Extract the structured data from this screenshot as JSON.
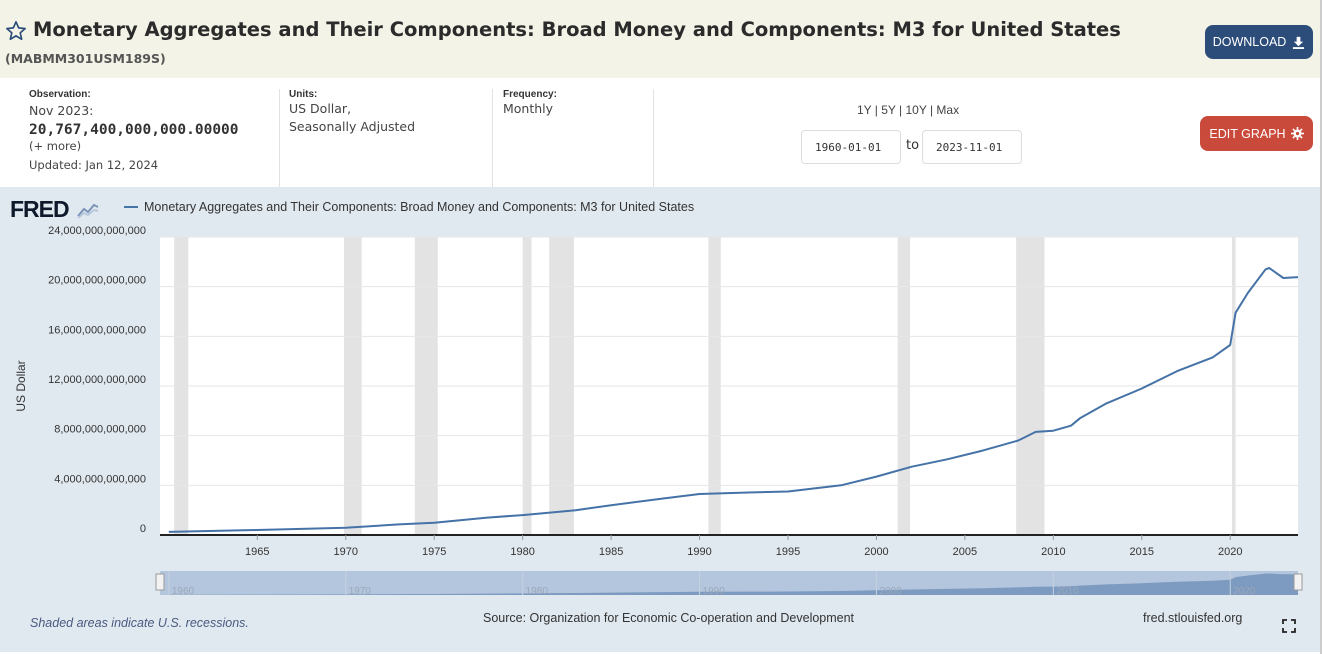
{
  "header": {
    "title": "Monetary Aggregates and Their Components: Broad Money and Components: M3 for United States",
    "series_id": "(MABMM301USM189S)",
    "download_label": "DOWNLOAD"
  },
  "meta": {
    "observation_label": "Observation:",
    "observation_date": "Nov 2023:",
    "observation_value": "20,767,400,000,000.00000",
    "more": "(+ more)",
    "updated": "Updated: Jan 12, 2024",
    "units_label": "Units:",
    "units_line1": "US Dollar,",
    "units_line2": "Seasonally Adjusted",
    "frequency_label": "Frequency:",
    "frequency": "Monthly"
  },
  "controls": {
    "ranges": "1Y | 5Y | 10Y | Max",
    "start_date": "1960-01-01",
    "to": "to",
    "end_date": "2023-11-01",
    "edit_label": "EDIT GRAPH"
  },
  "panel": {
    "logo": "FRED",
    "note": "Shaded areas indicate U.S. recessions.",
    "source": "Source: Organization for Economic Co-operation and Development",
    "site": "fred.stlouisfed.org"
  },
  "colors": {
    "series": "#4572a7",
    "recession": "#e3e3e3",
    "download": "#2c4d7a",
    "edit": "#c9493a"
  },
  "chart_data": {
    "type": "line",
    "series": [
      {
        "name": "Monetary Aggregates and Their Components: Broad Money and Components: M3 for United States",
        "x": [
          1960,
          1965,
          1970,
          1973,
          1975,
          1978,
          1980,
          1983,
          1985,
          1988,
          1990,
          1993,
          1995,
          1998,
          2000,
          2002,
          2004,
          2006,
          2008,
          2009,
          2010,
          2011,
          2011.5,
          2013,
          2015,
          2017,
          2019,
          2020,
          2020.3,
          2021,
          2022,
          2022.2,
          2023,
          2023.83
        ],
        "values": [
          250000000000,
          400000000000,
          580000000000,
          850000000000,
          980000000000,
          1400000000000,
          1600000000000,
          2000000000000,
          2400000000000,
          2950000000000,
          3300000000000,
          3430000000000,
          3500000000000,
          4000000000000,
          4700000000000,
          5500000000000,
          6100000000000,
          6800000000000,
          7600000000000,
          8300000000000,
          8400000000000,
          8800000000000,
          9400000000000,
          10600000000000,
          11800000000000,
          13200000000000,
          14300000000000,
          15300000000000,
          17900000000000,
          19500000000000,
          21400000000000,
          21500000000000,
          20700000000000,
          20767400000000
        ]
      }
    ],
    "ylabel": "US Dollar",
    "ylim": [
      0,
      24000000000000
    ],
    "xlim": [
      1959.5,
      2023.83
    ],
    "y_ticks": [
      "0",
      "4,000,000,000,000",
      "8,000,000,000,000",
      "12,000,000,000,000",
      "16,000,000,000,000",
      "20,000,000,000,000",
      "24,000,000,000,000"
    ],
    "x_ticks": [
      "1965",
      "1970",
      "1975",
      "1980",
      "1985",
      "1990",
      "1995",
      "2000",
      "2005",
      "2010",
      "2015",
      "2020"
    ],
    "navigator_ticks": [
      "1960",
      "1970",
      "1980",
      "1990",
      "2000",
      "2010",
      "2020"
    ],
    "recessions": [
      [
        1960.3,
        1961.1
      ],
      [
        1969.9,
        1970.9
      ],
      [
        1973.9,
        1975.2
      ],
      [
        1980.0,
        1980.5
      ],
      [
        1981.5,
        1982.9
      ],
      [
        1990.5,
        1991.2
      ],
      [
        2001.2,
        2001.9
      ],
      [
        2007.9,
        2009.5
      ],
      [
        2020.1,
        2020.3
      ]
    ],
    "grid": true
  }
}
